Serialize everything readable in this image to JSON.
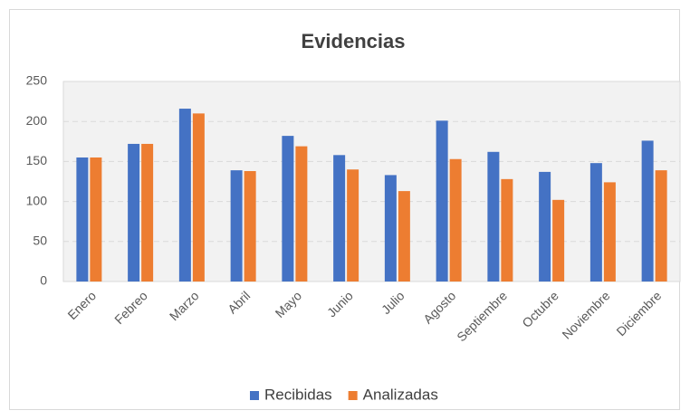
{
  "chart_data": {
    "type": "bar",
    "title": "Evidencias",
    "categories": [
      "Enero",
      "Febreo",
      "Marzo",
      "Abril",
      "Mayo",
      "Junio",
      "Julio",
      "Agosto",
      "Septiembre",
      "Octubre",
      "Noviembre",
      "Diciembre"
    ],
    "series": [
      {
        "name": "Recibidas",
        "color": "#4472c4",
        "values": [
          155,
          172,
          216,
          139,
          182,
          158,
          133,
          201,
          162,
          137,
          148,
          176
        ]
      },
      {
        "name": "Analizadas",
        "color": "#ed7d31",
        "values": [
          155,
          172,
          210,
          138,
          169,
          140,
          113,
          153,
          128,
          102,
          124,
          139
        ]
      }
    ],
    "ylim": [
      0,
      250
    ],
    "yticks": [
      0,
      50,
      100,
      150,
      200,
      250
    ],
    "grid": true,
    "legend": "bottom"
  }
}
